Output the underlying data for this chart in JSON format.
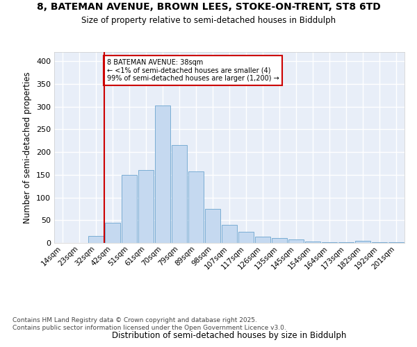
{
  "title_line1": "8, BATEMAN AVENUE, BROWN LEES, STOKE-ON-TRENT, ST8 6TD",
  "title_line2": "Size of property relative to semi-detached houses in Biddulph",
  "xlabel": "Distribution of semi-detached houses by size in Biddulph",
  "ylabel": "Number of semi-detached properties",
  "bar_labels": [
    "14sqm",
    "23sqm",
    "32sqm",
    "42sqm",
    "51sqm",
    "61sqm",
    "70sqm",
    "79sqm",
    "89sqm",
    "98sqm",
    "107sqm",
    "117sqm",
    "126sqm",
    "135sqm",
    "145sqm",
    "154sqm",
    "164sqm",
    "173sqm",
    "182sqm",
    "192sqm",
    "201sqm"
  ],
  "bar_values": [
    0,
    0,
    15,
    45,
    150,
    160,
    302,
    215,
    158,
    75,
    40,
    25,
    13,
    10,
    7,
    3,
    2,
    1,
    4,
    2,
    2
  ],
  "bar_color": "#c5d9f0",
  "bar_edge_color": "#7aadd4",
  "property_line_x": 2.5,
  "annotation_text": "8 BATEMAN AVENUE: 38sqm\n← <1% of semi-detached houses are smaller (4)\n99% of semi-detached houses are larger (1,200) →",
  "annotation_box_color": "#ffffff",
  "annotation_box_edge": "#cc0000",
  "line_color": "#cc0000",
  "ylim": [
    0,
    420
  ],
  "yticks": [
    0,
    50,
    100,
    150,
    200,
    250,
    300,
    350,
    400
  ],
  "footer_text": "Contains HM Land Registry data © Crown copyright and database right 2025.\nContains public sector information licensed under the Open Government Licence v3.0.",
  "bg_color": "#ffffff",
  "plot_bg_color": "#e8eef8",
  "grid_color": "#ffffff"
}
